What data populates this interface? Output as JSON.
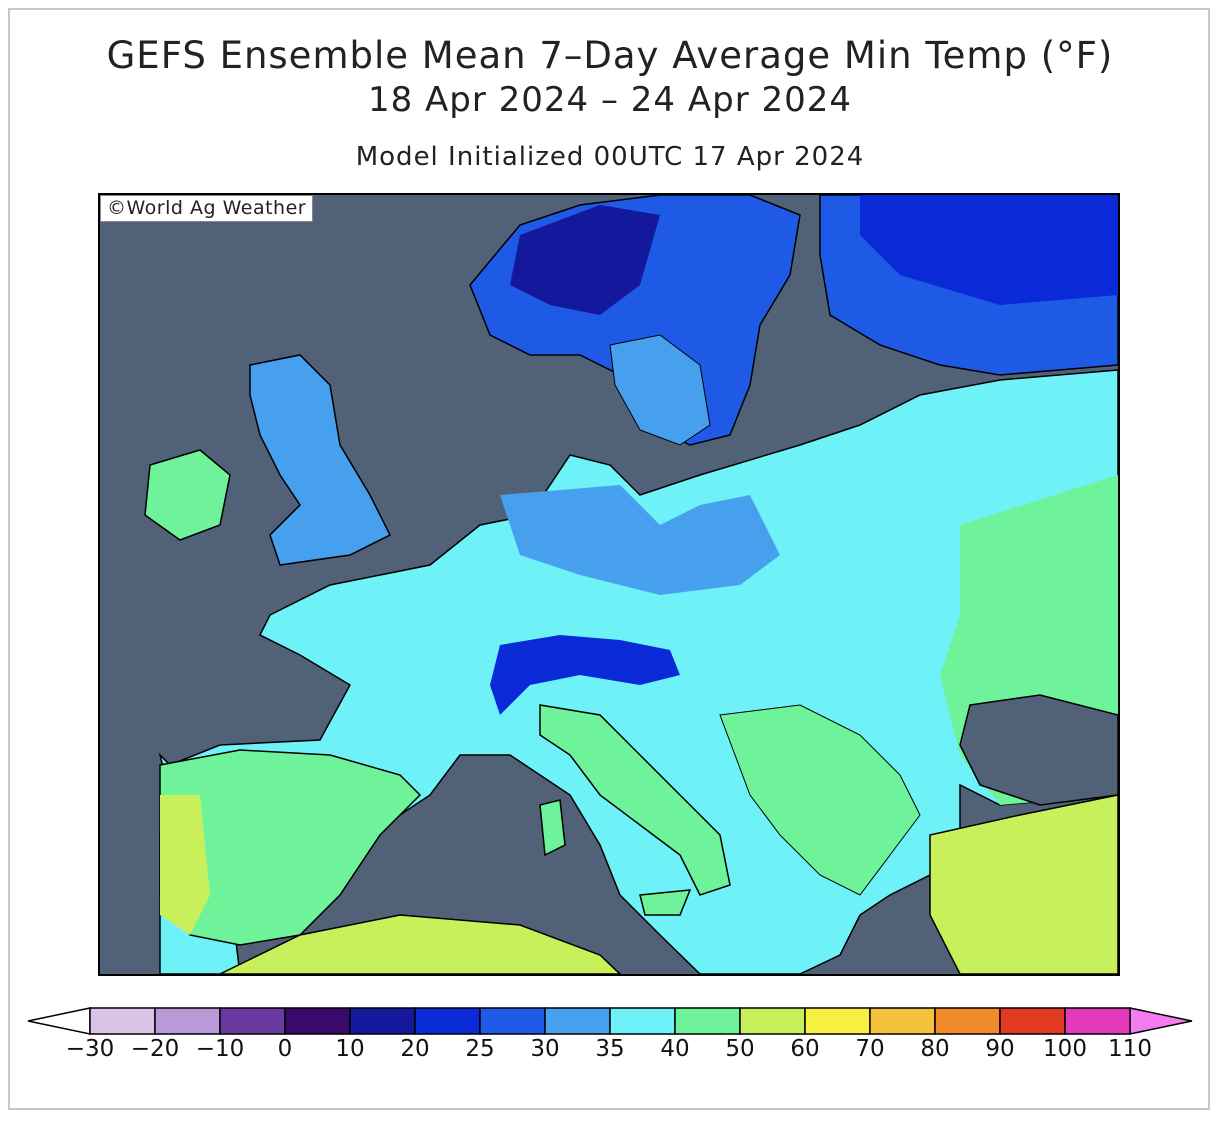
{
  "title": {
    "line1": "GEFS Ensemble Mean 7–Day Average Min Temp (°F)",
    "line2": "18 Apr 2024 – 24 Apr 2024",
    "line3": "Model Initialized 00UTC 17 Apr 2024"
  },
  "credit": "©World Ag Weather",
  "map": {
    "region": "Europe",
    "ocean_color": "#506178",
    "border_color": "#000000"
  },
  "colorbar": {
    "ticks": [
      "−30",
      "−20",
      "−10",
      "0",
      "10",
      "20",
      "25",
      "30",
      "35",
      "40",
      "50",
      "60",
      "70",
      "80",
      "90",
      "100",
      "110"
    ],
    "colors": [
      "#d8c4e8",
      "#b89ad8",
      "#6a3aa0",
      "#3a0a6a",
      "#14189c",
      "#0a2ad8",
      "#1e5ae6",
      "#46a0ee",
      "#6ef2f8",
      "#6ef29a",
      "#c8f05a",
      "#f8f040",
      "#f4c23c",
      "#f08a2a",
      "#e23a22",
      "#e23ab8"
    ],
    "low_end_color": "#ffffff",
    "high_end_color": "#f27cf0"
  }
}
